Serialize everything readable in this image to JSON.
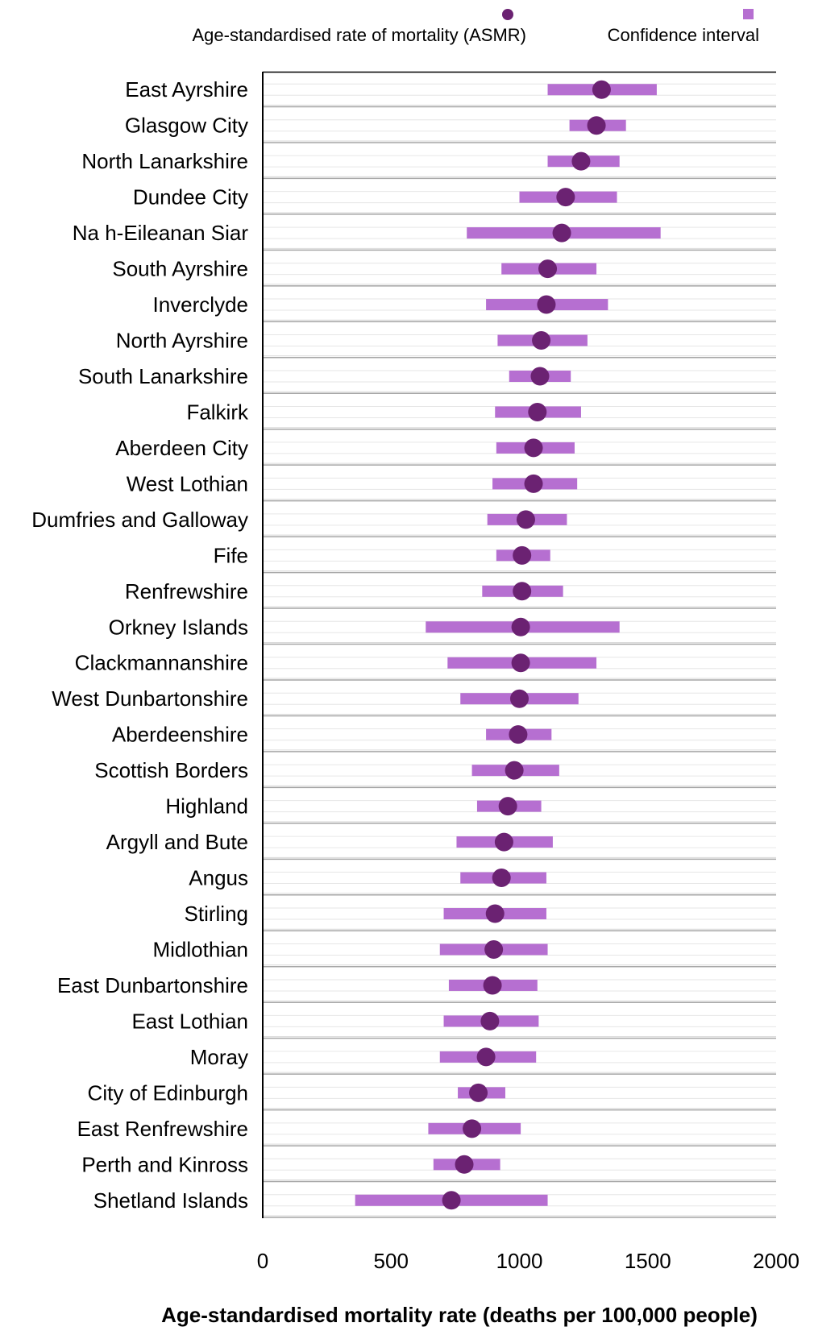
{
  "chart_data": {
    "type": "scatter",
    "orientation": "horizontal",
    "xlabel": "Age-standardised mortality rate (deaths per 100,000 people)",
    "xlim": [
      0,
      2000
    ],
    "xticks": [
      0,
      500,
      1000,
      1500,
      2000
    ],
    "grid": "horizontal category separators",
    "legend_position": "top",
    "colors": {
      "asmr": "#6b2272",
      "ci": "#b66fd1"
    },
    "legend": {
      "asmr_label": "Age-standardised rate of mortality (ASMR)",
      "ci_label": "Confidence interval"
    },
    "categories": [
      "East Ayrshire",
      "Glasgow City",
      "North Lanarkshire",
      "Dundee City",
      "Na h-Eileanan Siar",
      "South Ayrshire",
      "Inverclyde",
      "North Ayrshire",
      "South Lanarkshire",
      "Falkirk",
      "Aberdeen City",
      "West Lothian",
      "Dumfries and Galloway",
      "Fife",
      "Renfrewshire",
      "Orkney Islands",
      "Clackmannanshire",
      "West Dunbartonshire",
      "Aberdeenshire",
      "Scottish Borders",
      "Highland",
      "Argyll and Bute",
      "Angus",
      "Stirling",
      "Midlothian",
      "East Dunbartonshire",
      "East Lothian",
      "Moray",
      "City of Edinburgh",
      "East Renfrewshire",
      "Perth and Kinross",
      "Shetland Islands"
    ],
    "series": [
      {
        "name": "Age-standardised rate of mortality (ASMR)",
        "values": [
          1320,
          1300,
          1240,
          1180,
          1165,
          1110,
          1105,
          1085,
          1080,
          1070,
          1055,
          1055,
          1025,
          1010,
          1010,
          1005,
          1005,
          1000,
          995,
          980,
          955,
          940,
          930,
          905,
          900,
          895,
          885,
          870,
          840,
          815,
          785,
          735
        ]
      },
      {
        "name": "Confidence interval",
        "lower": [
          1110,
          1195,
          1110,
          1000,
          795,
          930,
          870,
          915,
          960,
          905,
          910,
          895,
          875,
          910,
          855,
          635,
          720,
          770,
          870,
          815,
          835,
          755,
          770,
          705,
          690,
          725,
          705,
          690,
          760,
          645,
          665,
          360
        ],
        "upper": [
          1535,
          1415,
          1390,
          1380,
          1550,
          1300,
          1345,
          1265,
          1200,
          1240,
          1215,
          1225,
          1185,
          1120,
          1170,
          1390,
          1300,
          1230,
          1125,
          1155,
          1085,
          1130,
          1105,
          1105,
          1110,
          1070,
          1075,
          1065,
          945,
          1005,
          925,
          1110
        ]
      }
    ]
  }
}
